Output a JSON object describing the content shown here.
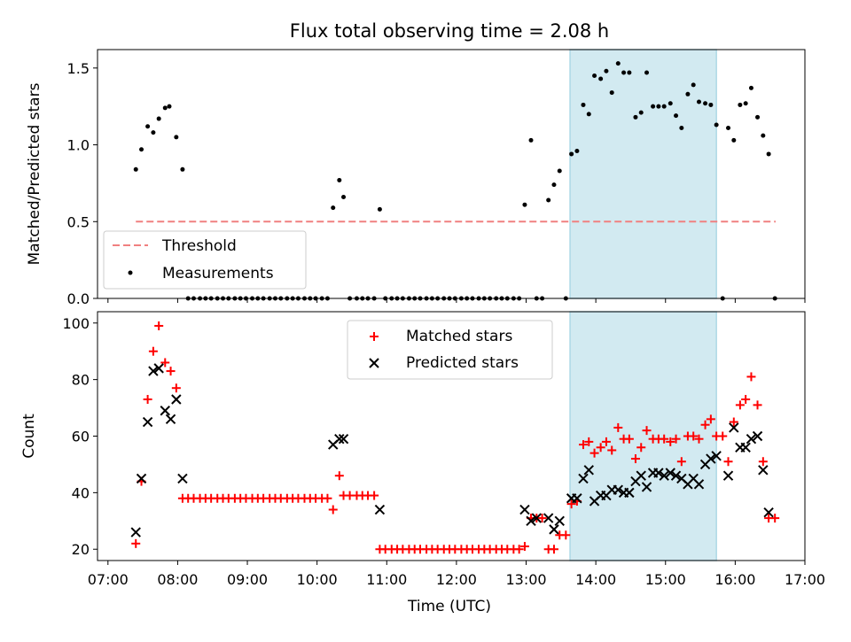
{
  "figure": {
    "title": "Flux total observing time = 2.08 h",
    "xlabel": "Time (UTC)"
  },
  "colors": {
    "measure": "#000000",
    "threshold": "#f08080",
    "matched": "#ff0000",
    "predicted": "#000000",
    "span": "#add8e6"
  },
  "chart_data": [
    {
      "type": "scatter",
      "panel": "top",
      "ylabel": "Matched/Predicted stars",
      "xlim_hours": [
        6.85,
        17.0
      ],
      "ylim": [
        0,
        1.62
      ],
      "yticks": [
        0.0,
        0.5,
        1.0,
        1.5
      ],
      "ytick_labels": [
        "0.0",
        "0.5",
        "1.0",
        "1.5"
      ],
      "highlight_span_hours": [
        13.63,
        15.73
      ],
      "threshold": {
        "name": "Threshold",
        "value": 0.5,
        "x_range_hours": [
          7.4,
          16.58
        ]
      },
      "legend": {
        "position": "lower-left",
        "entries": [
          "Threshold",
          "Measurements"
        ]
      },
      "series": [
        {
          "name": "Measurements",
          "x_hours": [
            7.4,
            7.48,
            7.57,
            7.65,
            7.73,
            7.82,
            7.88,
            7.98,
            8.07,
            8.15,
            8.23,
            8.32,
            8.4,
            8.48,
            8.57,
            8.65,
            8.73,
            8.82,
            8.9,
            8.98,
            9.07,
            9.15,
            9.23,
            9.32,
            9.4,
            9.48,
            9.57,
            9.65,
            9.73,
            9.82,
            9.9,
            9.98,
            10.07,
            10.15,
            10.23,
            10.32,
            10.38,
            10.47,
            10.57,
            10.65,
            10.73,
            10.82,
            10.9,
            10.98,
            11.07,
            11.15,
            11.23,
            11.32,
            11.4,
            11.48,
            11.57,
            11.65,
            11.73,
            11.82,
            11.9,
            11.98,
            12.07,
            12.15,
            12.23,
            12.32,
            12.4,
            12.48,
            12.57,
            12.65,
            12.73,
            12.82,
            12.9,
            12.98,
            13.07,
            13.15,
            13.23,
            13.32,
            13.4,
            13.48,
            13.57,
            13.65,
            13.73,
            13.82,
            13.9,
            13.98,
            14.07,
            14.15,
            14.23,
            14.32,
            14.4,
            14.48,
            14.57,
            14.65,
            14.73,
            14.82,
            14.9,
            14.98,
            15.07,
            15.15,
            15.23,
            15.32,
            15.4,
            15.48,
            15.57,
            15.65,
            15.73,
            15.82,
            15.9,
            15.98,
            16.07,
            16.15,
            16.23,
            16.32,
            16.4,
            16.48,
            16.57
          ],
          "y": [
            0.84,
            0.97,
            1.12,
            1.08,
            1.17,
            1.24,
            1.25,
            1.05,
            0.84,
            0.0,
            0.0,
            0.0,
            0.0,
            0.0,
            0.0,
            0.0,
            0.0,
            0.0,
            0.0,
            0.0,
            0.0,
            0.0,
            0.0,
            0.0,
            0.0,
            0.0,
            0.0,
            0.0,
            0.0,
            0.0,
            0.0,
            0.0,
            0.0,
            0.0,
            0.59,
            0.77,
            0.66,
            0.0,
            0.0,
            0.0,
            0.0,
            0.0,
            0.58,
            0.0,
            0.0,
            0.0,
            0.0,
            0.0,
            0.0,
            0.0,
            0.0,
            0.0,
            0.0,
            0.0,
            0.0,
            0.0,
            0.0,
            0.0,
            0.0,
            0.0,
            0.0,
            0.0,
            0.0,
            0.0,
            0.0,
            0.0,
            0.0,
            0.61,
            1.03,
            0.0,
            0.0,
            0.64,
            0.74,
            0.83,
            0.0,
            0.94,
            0.96,
            1.26,
            1.2,
            1.45,
            1.43,
            1.48,
            1.34,
            1.53,
            1.47,
            1.47,
            1.18,
            1.21,
            1.47,
            1.25,
            1.25,
            1.25,
            1.27,
            1.19,
            1.11,
            1.33,
            1.39,
            1.28,
            1.27,
            1.26,
            1.13,
            0.0,
            1.11,
            1.03,
            1.26,
            1.27,
            1.37,
            1.18,
            1.06,
            0.94,
            0.0
          ]
        }
      ]
    },
    {
      "type": "scatter",
      "panel": "bottom",
      "ylabel": "Count",
      "xlim_hours": [
        6.85,
        17.0
      ],
      "ylim": [
        16,
        104
      ],
      "yticks": [
        20,
        40,
        60,
        80,
        100
      ],
      "ytick_labels": [
        "20",
        "40",
        "60",
        "80",
        "100"
      ],
      "xticks_hours": [
        7,
        8,
        9,
        10,
        11,
        12,
        13,
        14,
        15,
        16,
        17
      ],
      "xtick_labels": [
        "07:00",
        "08:00",
        "09:00",
        "10:00",
        "11:00",
        "12:00",
        "13:00",
        "14:00",
        "15:00",
        "16:00",
        "17:00"
      ],
      "highlight_span_hours": [
        13.63,
        15.73
      ],
      "legend": {
        "position": "top-center",
        "entries": [
          "Matched stars",
          "Predicted stars"
        ]
      },
      "series": [
        {
          "name": "Matched stars",
          "marker": "plus",
          "x_hours": [
            7.4,
            7.48,
            7.57,
            7.65,
            7.73,
            7.82,
            7.9,
            7.98,
            8.07,
            8.15,
            8.23,
            8.32,
            8.4,
            8.48,
            8.57,
            8.65,
            8.73,
            8.82,
            8.9,
            8.98,
            9.07,
            9.15,
            9.23,
            9.32,
            9.4,
            9.48,
            9.57,
            9.65,
            9.73,
            9.82,
            9.9,
            9.98,
            10.07,
            10.15,
            10.23,
            10.32,
            10.38,
            10.47,
            10.57,
            10.65,
            10.73,
            10.82,
            10.9,
            10.98,
            11.07,
            11.15,
            11.23,
            11.32,
            11.4,
            11.48,
            11.57,
            11.65,
            11.73,
            11.82,
            11.9,
            11.98,
            12.07,
            12.15,
            12.23,
            12.32,
            12.4,
            12.48,
            12.57,
            12.65,
            12.73,
            12.82,
            12.9,
            12.98,
            13.07,
            13.15,
            13.23,
            13.32,
            13.4,
            13.48,
            13.57,
            13.65,
            13.73,
            13.82,
            13.9,
            13.98,
            14.07,
            14.15,
            14.23,
            14.32,
            14.4,
            14.48,
            14.57,
            14.65,
            14.73,
            14.82,
            14.9,
            14.98,
            15.07,
            15.15,
            15.23,
            15.32,
            15.4,
            15.48,
            15.57,
            15.65,
            15.73,
            15.82,
            15.9,
            15.98,
            16.07,
            16.15,
            16.23,
            16.32,
            16.4,
            16.48,
            16.57
          ],
          "y": [
            22,
            44,
            73,
            90,
            99,
            86,
            83,
            77,
            38,
            38,
            38,
            38,
            38,
            38,
            38,
            38,
            38,
            38,
            38,
            38,
            38,
            38,
            38,
            38,
            38,
            38,
            38,
            38,
            38,
            38,
            38,
            38,
            38,
            38,
            34,
            46,
            39,
            39,
            39,
            39,
            39,
            39,
            20,
            20,
            20,
            20,
            20,
            20,
            20,
            20,
            20,
            20,
            20,
            20,
            20,
            20,
            20,
            20,
            20,
            20,
            20,
            20,
            20,
            20,
            20,
            20,
            20,
            21,
            31,
            31,
            31,
            20,
            20,
            25,
            25,
            36,
            37,
            57,
            58,
            54,
            56,
            58,
            55,
            63,
            59,
            59,
            52,
            56,
            62,
            59,
            59,
            59,
            58,
            59,
            51,
            60,
            60,
            59,
            64,
            66,
            60,
            60,
            51,
            65,
            71,
            73,
            81,
            71,
            51,
            31,
            31
          ]
        },
        {
          "name": "Predicted stars",
          "marker": "x",
          "x_hours": [
            7.4,
            7.48,
            7.57,
            7.65,
            7.73,
            7.82,
            7.9,
            7.98,
            8.07,
            10.23,
            10.32,
            10.38,
            10.9,
            12.98,
            13.07,
            13.15,
            13.32,
            13.4,
            13.48,
            13.65,
            13.73,
            13.82,
            13.9,
            13.98,
            14.07,
            14.15,
            14.23,
            14.32,
            14.4,
            14.48,
            14.57,
            14.65,
            14.73,
            14.82,
            14.9,
            14.98,
            15.07,
            15.15,
            15.23,
            15.32,
            15.4,
            15.48,
            15.57,
            15.65,
            15.73,
            15.9,
            15.98,
            16.07,
            16.15,
            16.23,
            16.32,
            16.4,
            16.48
          ],
          "y": [
            26,
            45,
            65,
            83,
            84,
            69,
            66,
            73,
            45,
            57,
            59,
            59,
            34,
            34,
            30,
            31,
            31,
            27,
            30,
            38,
            38,
            45,
            48,
            37,
            39,
            39,
            41,
            41,
            40,
            40,
            44,
            46,
            42,
            47,
            47,
            46,
            47,
            46,
            45,
            43,
            45,
            43,
            50,
            52,
            53,
            46,
            63,
            56,
            56,
            59,
            60,
            48,
            33
          ]
        }
      ]
    }
  ]
}
